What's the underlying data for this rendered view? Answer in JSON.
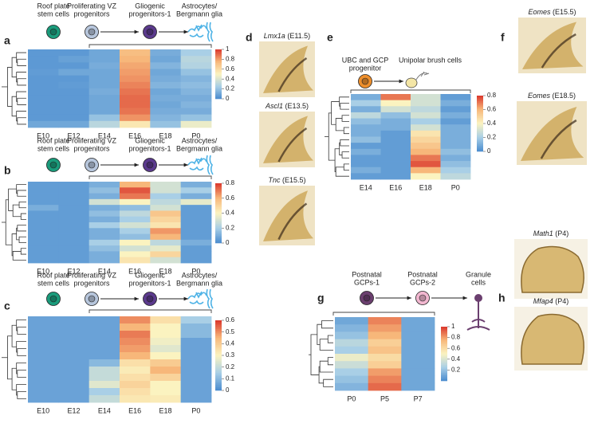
{
  "panel_labels": [
    "a",
    "b",
    "c",
    "d",
    "e",
    "f",
    "g",
    "h"
  ],
  "lineages": [
    {
      "cells": [
        [
          "Roof plate",
          "stem cells"
        ],
        [
          "Proliferating VZ",
          "progenitors"
        ],
        [
          "Gliogenic",
          "progenitors-1"
        ],
        [
          "Astrocytes/",
          "Bergmann glia"
        ]
      ]
    },
    {
      "cells": [
        [
          "Roof plate",
          "stem cells"
        ],
        [
          "Proliferating VZ",
          "progenitors"
        ],
        [
          "Gliogenic",
          "progenitors-1"
        ],
        [
          "Astrocytes/",
          "Bergmann glia"
        ]
      ]
    },
    {
      "cells": [
        [
          "Roof plate",
          "stem cells"
        ],
        [
          "Proliferating VZ",
          "progenitors"
        ],
        [
          "Gliogenic",
          "progenitors-1"
        ],
        [
          "Astrocytes/",
          "Bergmann glia"
        ]
      ]
    },
    {
      "cells": [
        [
          "UBC and GCP",
          "progenitor"
        ],
        [
          "Unipolar brush cells"
        ]
      ]
    },
    {
      "cells": [
        [
          "Postnatal",
          "GCPs-1"
        ],
        [
          "Postnatal",
          "GCPs-2"
        ],
        [
          "Granule",
          "cells"
        ]
      ]
    }
  ],
  "images": [
    {
      "gene": "Lmx1a",
      "stage": "(E11.5)"
    },
    {
      "gene": "Ascl1",
      "stage": "(E13.5)"
    },
    {
      "gene": "Tnc",
      "stage": "(E15.5)"
    },
    {
      "gene": "Eomes",
      "stage": "(E15.5)"
    },
    {
      "gene": "Eomes",
      "stage": "(E18.5)"
    },
    {
      "gene": "Math1",
      "stage": "(P4)"
    },
    {
      "gene": "Mfap4",
      "stage": "(P4)"
    }
  ],
  "chart_data": [
    {
      "type": "heatmap",
      "categories": [
        "E10",
        "E12",
        "E14",
        "E16",
        "E18",
        "P0"
      ],
      "colormap": [
        "#4a8ccf",
        "#a9cfe6",
        "#fbf3c0",
        "#f7b77a",
        "#d9362b"
      ],
      "clim": [
        0,
        1
      ],
      "cticks": [
        0,
        0.2,
        0.4,
        0.6,
        0.8,
        1
      ],
      "values": [
        [
          0.05,
          0.05,
          0.1,
          0.72,
          0.12,
          0.25
        ],
        [
          0.05,
          0.08,
          0.1,
          0.75,
          0.1,
          0.3
        ],
        [
          0.05,
          0.05,
          0.12,
          0.78,
          0.15,
          0.28
        ],
        [
          0.06,
          0.1,
          0.1,
          0.8,
          0.1,
          0.2
        ],
        [
          0.05,
          0.05,
          0.1,
          0.82,
          0.12,
          0.15
        ],
        [
          0.05,
          0.06,
          0.1,
          0.85,
          0.15,
          0.18
        ],
        [
          0.05,
          0.05,
          0.12,
          0.88,
          0.1,
          0.15
        ],
        [
          0.05,
          0.05,
          0.1,
          0.9,
          0.12,
          0.12
        ],
        [
          0.05,
          0.05,
          0.1,
          0.9,
          0.1,
          0.15
        ],
        [
          0.05,
          0.05,
          0.1,
          0.88,
          0.12,
          0.12
        ],
        [
          0.05,
          0.05,
          0.2,
          0.82,
          0.15,
          0.2
        ],
        [
          0.1,
          0.1,
          0.3,
          0.55,
          0.2,
          0.45
        ]
      ]
    },
    {
      "type": "heatmap",
      "categories": [
        "E10",
        "E12",
        "E14",
        "E16",
        "E18",
        "P0"
      ],
      "colormap": [
        "#4a8ccf",
        "#a9cfe6",
        "#fbf3c0",
        "#f7b77a",
        "#d9362b"
      ],
      "clim": [
        0,
        0.8
      ],
      "cticks": [
        0,
        0.2,
        0.4,
        0.6,
        0.8
      ],
      "values": [
        [
          0.05,
          0.05,
          0.1,
          0.6,
          0.3,
          0.1
        ],
        [
          0.05,
          0.05,
          0.15,
          0.75,
          0.3,
          0.2
        ],
        [
          0.05,
          0.05,
          0.1,
          0.7,
          0.2,
          0.1
        ],
        [
          0.05,
          0.05,
          0.3,
          0.4,
          0.25,
          0.35
        ],
        [
          0.1,
          0.05,
          0.1,
          0.15,
          0.3,
          0.05
        ],
        [
          0.05,
          0.05,
          0.15,
          0.25,
          0.55,
          0.05
        ],
        [
          0.05,
          0.05,
          0.1,
          0.2,
          0.5,
          0.05
        ],
        [
          0.05,
          0.05,
          0.2,
          0.3,
          0.45,
          0.05
        ],
        [
          0.05,
          0.05,
          0.1,
          0.2,
          0.65,
          0.05
        ],
        [
          0.05,
          0.05,
          0.1,
          0.15,
          0.6,
          0.05
        ],
        [
          0.05,
          0.05,
          0.2,
          0.4,
          0.25,
          0.1
        ],
        [
          0.05,
          0.05,
          0.15,
          0.3,
          0.35,
          0.05
        ],
        [
          0.05,
          0.05,
          0.1,
          0.4,
          0.5,
          0.05
        ],
        [
          0.05,
          0.05,
          0.1,
          0.45,
          0.3,
          0.05
        ]
      ]
    },
    {
      "type": "heatmap",
      "categories": [
        "E10",
        "E12",
        "E14",
        "E16",
        "E18",
        "P0"
      ],
      "colormap": [
        "#4a8ccf",
        "#a9cfe6",
        "#fbf3c0",
        "#f7b77a",
        "#d9362b"
      ],
      "clim": [
        0,
        0.6
      ],
      "cticks": [
        0,
        0.1,
        0.2,
        0.3,
        0.4,
        0.5,
        0.6
      ],
      "values": [
        [
          0.05,
          0.05,
          0.05,
          0.5,
          0.35,
          0.15
        ],
        [
          0.05,
          0.05,
          0.05,
          0.45,
          0.3,
          0.1
        ],
        [
          0.05,
          0.05,
          0.05,
          0.52,
          0.3,
          0.1
        ],
        [
          0.05,
          0.05,
          0.05,
          0.5,
          0.28,
          0.05
        ],
        [
          0.05,
          0.05,
          0.05,
          0.48,
          0.25,
          0.05
        ],
        [
          0.05,
          0.05,
          0.05,
          0.45,
          0.3,
          0.05
        ],
        [
          0.05,
          0.05,
          0.1,
          0.35,
          0.4,
          0.05
        ],
        [
          0.05,
          0.05,
          0.2,
          0.32,
          0.45,
          0.05
        ],
        [
          0.05,
          0.05,
          0.2,
          0.35,
          0.38,
          0.05
        ],
        [
          0.05,
          0.05,
          0.25,
          0.38,
          0.3,
          0.05
        ],
        [
          0.05,
          0.05,
          0.15,
          0.35,
          0.3,
          0.05
        ],
        [
          0.05,
          0.05,
          0.2,
          0.33,
          0.32,
          0.05
        ]
      ]
    },
    {
      "type": "heatmap",
      "categories": [
        "E14",
        "E16",
        "E18",
        "P0"
      ],
      "colormap": [
        "#4a8ccf",
        "#a9cfe6",
        "#fbf3c0",
        "#f7b77a",
        "#d9362b"
      ],
      "clim": [
        0,
        0.8
      ],
      "cticks": [
        0,
        0.2,
        0.4,
        0.6,
        0.8
      ],
      "values": [
        [
          0.1,
          0.7,
          0.3,
          0.05
        ],
        [
          0.2,
          0.4,
          0.3,
          0.1
        ],
        [
          0.1,
          0.3,
          0.25,
          0.05
        ],
        [
          0.25,
          0.15,
          0.3,
          0.1
        ],
        [
          0.15,
          0.1,
          0.2,
          0.05
        ],
        [
          0.1,
          0.1,
          0.3,
          0.1
        ],
        [
          0.1,
          0.05,
          0.45,
          0.1
        ],
        [
          0.15,
          0.05,
          0.5,
          0.1
        ],
        [
          0.05,
          0.05,
          0.55,
          0.1
        ],
        [
          0.1,
          0.05,
          0.6,
          0.15
        ],
        [
          0.05,
          0.05,
          0.7,
          0.1
        ],
        [
          0.05,
          0.05,
          0.75,
          0.15
        ],
        [
          0.1,
          0.05,
          0.6,
          0.2
        ],
        [
          0.05,
          0.05,
          0.4,
          0.25
        ]
      ]
    },
    {
      "type": "heatmap",
      "categories": [
        "P0",
        "P5",
        "P7"
      ],
      "colormap": [
        "#4a8ccf",
        "#a9cfe6",
        "#fbf3c0",
        "#f7b77a",
        "#d9362b"
      ],
      "clim": [
        0,
        1
      ],
      "cticks": [
        0.2,
        0.4,
        0.6,
        0.8,
        1
      ],
      "values": [
        [
          0.1,
          0.85,
          0.1
        ],
        [
          0.15,
          0.8,
          0.1
        ],
        [
          0.2,
          0.75,
          0.1
        ],
        [
          0.3,
          0.65,
          0.1
        ],
        [
          0.25,
          0.7,
          0.1
        ],
        [
          0.45,
          0.6,
          0.1
        ],
        [
          0.35,
          0.65,
          0.1
        ],
        [
          0.25,
          0.8,
          0.1
        ],
        [
          0.2,
          0.85,
          0.1
        ],
        [
          0.15,
          0.9,
          0.1
        ]
      ]
    }
  ]
}
